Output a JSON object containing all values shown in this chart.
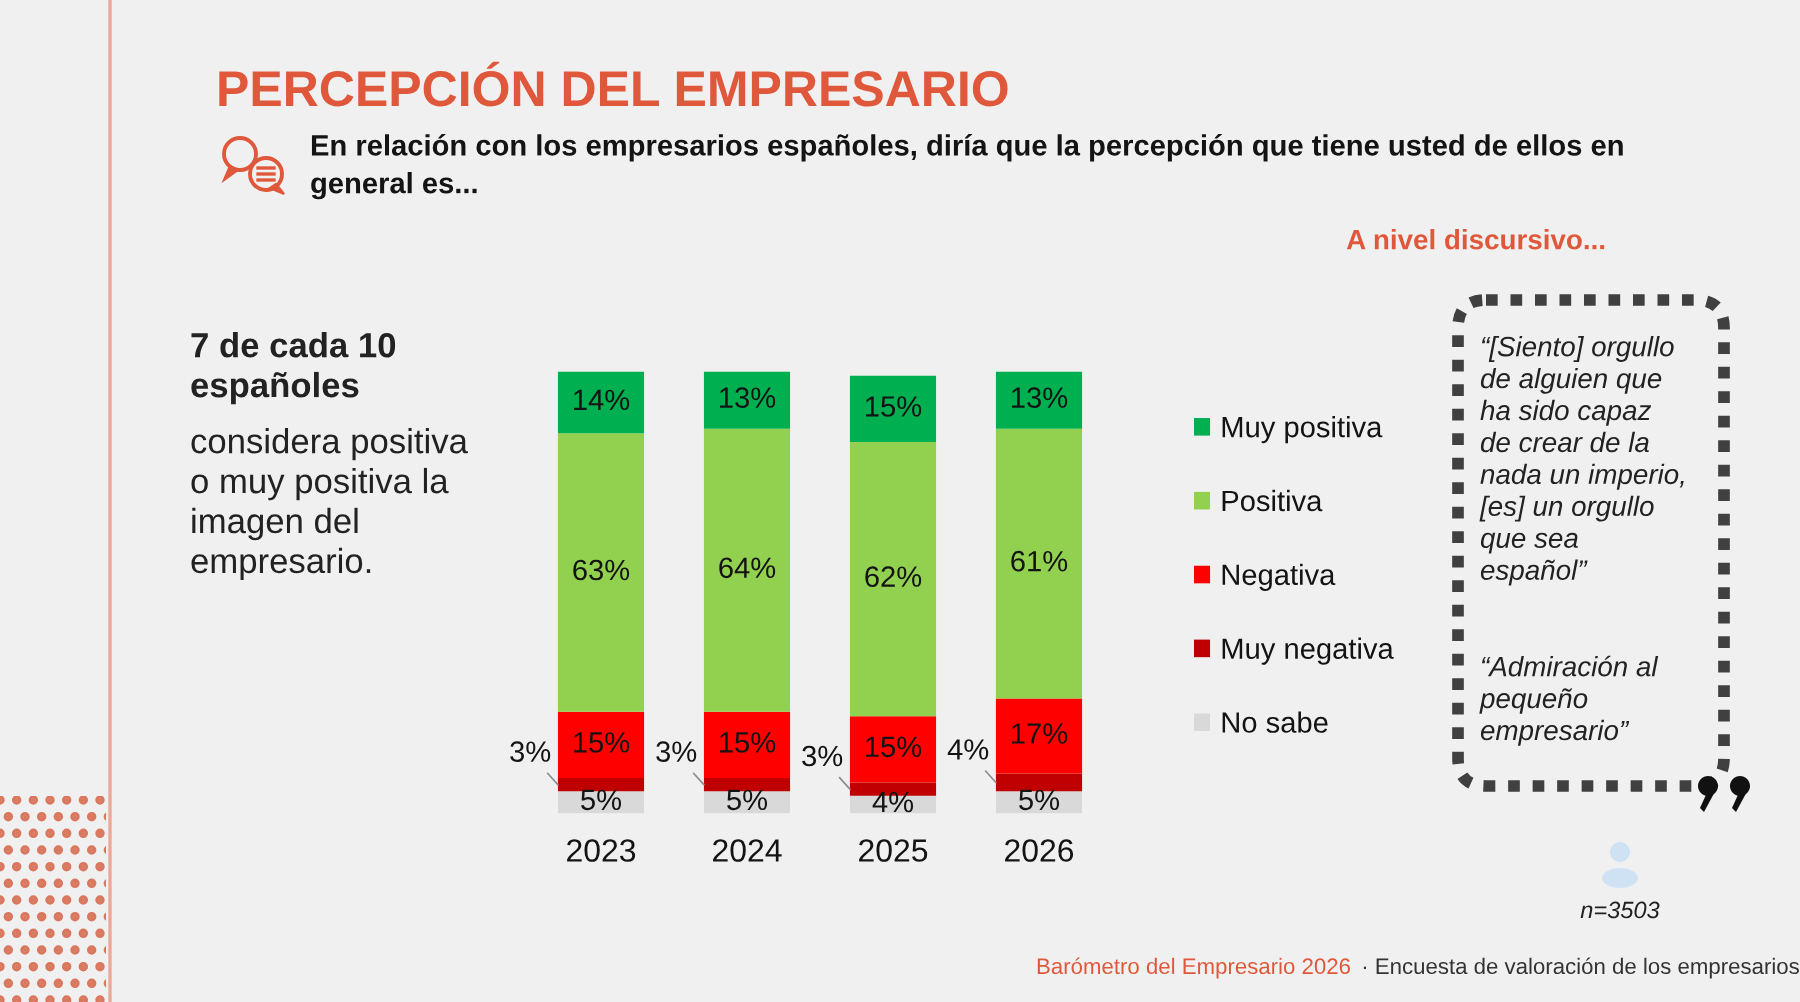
{
  "chart_data": {
    "type": "bar",
    "stacked": true,
    "title": "PERCEPCIÓN DEL EMPRESARIO",
    "subtitle": "En relación con los empresarios españoles, diría que la percepción que tiene usted de ellos en general es...",
    "categories": [
      "2023",
      "2024",
      "2025",
      "2026"
    ],
    "series": [
      {
        "name": "No sabe",
        "color": "#d9d9d9",
        "values": [
          5,
          5,
          4,
          5
        ],
        "value_labels": [
          "5%",
          "5%",
          "4%",
          "5%"
        ]
      },
      {
        "name": "Muy negativa",
        "color": "#c00000",
        "values": [
          3,
          3,
          3,
          4
        ],
        "value_labels": [
          "3%",
          "3%",
          "3%",
          "4%"
        ]
      },
      {
        "name": "Negativa",
        "color": "#ff0000",
        "values": [
          15,
          15,
          15,
          17
        ],
        "value_labels": [
          "15%",
          "15%",
          "15%",
          "17%"
        ]
      },
      {
        "name": "Positiva",
        "color": "#92d050",
        "values": [
          63,
          64,
          62,
          61
        ],
        "value_labels": [
          "63%",
          "64%",
          "62%",
          "61%"
        ]
      },
      {
        "name": "Muy positiva",
        "color": "#00b050",
        "values": [
          14,
          13,
          15,
          13
        ],
        "value_labels": [
          "14%",
          "13%",
          "15%",
          "13%"
        ]
      }
    ],
    "ylim": [
      0,
      100
    ],
    "tick_labels": "x",
    "legend": "right",
    "annotations": [
      "A nivel discursivo...",
      "7 de cada 10 españoles",
      "considera positiva o muy positiva la imagen del empresario.",
      "“[Siento] orgullo de alguien que ha sido capaz de crear de la nada un imperio, [es] un orgullo que sea español”",
      "“Admiración al pequeño empresario”",
      "n=3503",
      "Barómetro del Empresario 2026",
      "· Encuesta de valoración de los empresarios"
    ]
  }
}
